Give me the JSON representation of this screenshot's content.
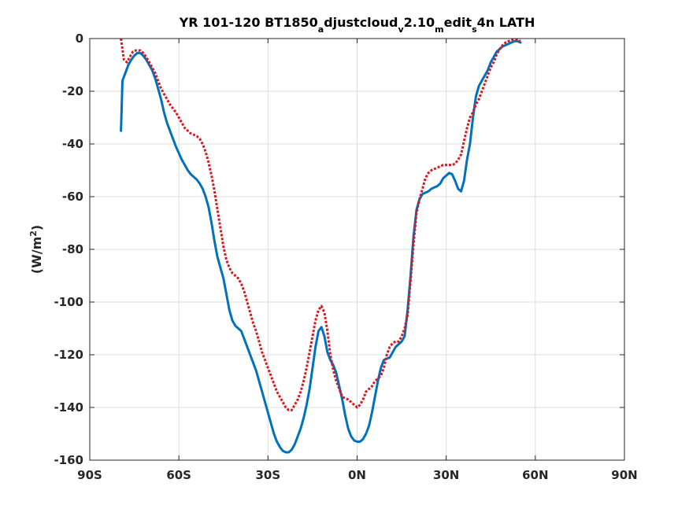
{
  "chart_data": {
    "type": "line",
    "title": {
      "parts": [
        {
          "text": "YR 101-120 BT1850",
          "shift": "none"
        },
        {
          "text": "a",
          "shift": "sub"
        },
        {
          "text": "djustcloud",
          "shift": "none"
        },
        {
          "text": "v",
          "shift": "sub"
        },
        {
          "text": "2.10",
          "shift": "none"
        },
        {
          "text": "m",
          "shift": "sub"
        },
        {
          "text": "edit",
          "shift": "none"
        },
        {
          "text": "s",
          "shift": "sub"
        },
        {
          "text": "4n LATH",
          "shift": "none"
        }
      ]
    },
    "ylabel": {
      "parts": [
        {
          "text": "(W/m",
          "shift": "none"
        },
        {
          "text": "2",
          "shift": "super"
        },
        {
          "text": ")",
          "shift": "none"
        }
      ]
    },
    "xlim": [
      -90,
      90
    ],
    "ylim": [
      -160,
      0
    ],
    "xticks": [
      -90,
      -60,
      -30,
      0,
      30,
      60,
      90
    ],
    "xtick_labels": [
      "90S",
      "60S",
      "30S",
      "0N",
      "30N",
      "60N",
      "90N"
    ],
    "yticks": [
      0,
      -20,
      -40,
      -60,
      -80,
      -100,
      -120,
      -140,
      -160
    ],
    "ytick_labels": [
      "0",
      "-20",
      "-40",
      "-60",
      "-80",
      "-100",
      "-120",
      "-140",
      "-160"
    ],
    "grid": true,
    "series": [
      {
        "color": "#0072BD",
        "style": "solid",
        "points": [
          [
            -79.5,
            -35
          ],
          [
            -79.3,
            -28
          ],
          [
            -79,
            -16
          ],
          [
            -78,
            -13
          ],
          [
            -77,
            -10
          ],
          [
            -76,
            -8
          ],
          [
            -75,
            -6.5
          ],
          [
            -74,
            -5.5
          ],
          [
            -73,
            -5.5
          ],
          [
            -72,
            -6.5
          ],
          [
            -71,
            -8
          ],
          [
            -70,
            -10
          ],
          [
            -69,
            -12
          ],
          [
            -68,
            -15
          ],
          [
            -67,
            -19
          ],
          [
            -66,
            -23
          ],
          [
            -65,
            -28
          ],
          [
            -64,
            -32
          ],
          [
            -63,
            -35
          ],
          [
            -62,
            -38
          ],
          [
            -61,
            -41
          ],
          [
            -60,
            -43.5
          ],
          [
            -59,
            -46
          ],
          [
            -58,
            -48
          ],
          [
            -57,
            -50
          ],
          [
            -56,
            -51.5
          ],
          [
            -55,
            -52.5
          ],
          [
            -54,
            -53.5
          ],
          [
            -53,
            -55
          ],
          [
            -52,
            -57
          ],
          [
            -51,
            -60
          ],
          [
            -50,
            -64
          ],
          [
            -49,
            -70
          ],
          [
            -48,
            -77
          ],
          [
            -47,
            -83
          ],
          [
            -46,
            -87
          ],
          [
            -45,
            -91
          ],
          [
            -44,
            -97
          ],
          [
            -43,
            -103
          ],
          [
            -42,
            -107
          ],
          [
            -41,
            -109
          ],
          [
            -40,
            -110
          ],
          [
            -39,
            -111
          ],
          [
            -38,
            -114
          ],
          [
            -37,
            -117
          ],
          [
            -36,
            -120
          ],
          [
            -35,
            -123
          ],
          [
            -34,
            -126
          ],
          [
            -33,
            -130
          ],
          [
            -32,
            -134
          ],
          [
            -31,
            -138
          ],
          [
            -30,
            -142
          ],
          [
            -29,
            -146
          ],
          [
            -28,
            -150
          ],
          [
            -27,
            -153
          ],
          [
            -26,
            -155
          ],
          [
            -25,
            -156.5
          ],
          [
            -24,
            -157
          ],
          [
            -23,
            -157
          ],
          [
            -22,
            -156
          ],
          [
            -21,
            -154
          ],
          [
            -20,
            -151
          ],
          [
            -19,
            -148
          ],
          [
            -18,
            -144
          ],
          [
            -17,
            -139
          ],
          [
            -16,
            -133
          ],
          [
            -15,
            -125
          ],
          [
            -14,
            -117
          ],
          [
            -13,
            -111
          ],
          [
            -12,
            -109.5
          ],
          [
            -11,
            -113
          ],
          [
            -10,
            -119
          ],
          [
            -9,
            -122
          ],
          [
            -8,
            -124
          ],
          [
            -7,
            -127
          ],
          [
            -6,
            -132
          ],
          [
            -5,
            -137
          ],
          [
            -4,
            -143
          ],
          [
            -3,
            -148
          ],
          [
            -2,
            -151
          ],
          [
            -1,
            -152.5
          ],
          [
            0,
            -153
          ],
          [
            1,
            -153
          ],
          [
            2,
            -152
          ],
          [
            3,
            -150
          ],
          [
            4,
            -147
          ],
          [
            5,
            -142
          ],
          [
            6,
            -136
          ],
          [
            7,
            -130
          ],
          [
            8,
            -125
          ],
          [
            9,
            -122
          ],
          [
            10,
            -121.5
          ],
          [
            11,
            -121
          ],
          [
            12,
            -119
          ],
          [
            13,
            -117
          ],
          [
            14,
            -116
          ],
          [
            15,
            -115
          ],
          [
            16,
            -113
          ],
          [
            17,
            -103
          ],
          [
            18,
            -90
          ],
          [
            19,
            -75
          ],
          [
            20,
            -65
          ],
          [
            21,
            -61
          ],
          [
            22,
            -59
          ],
          [
            23,
            -58.5
          ],
          [
            24,
            -58
          ],
          [
            25,
            -57
          ],
          [
            26,
            -56.5
          ],
          [
            27,
            -56
          ],
          [
            28,
            -55
          ],
          [
            29,
            -53
          ],
          [
            30,
            -52
          ],
          [
            31,
            -51
          ],
          [
            32,
            -51.5
          ],
          [
            33,
            -54
          ],
          [
            34,
            -57
          ],
          [
            35,
            -58
          ],
          [
            36,
            -54
          ],
          [
            37,
            -46
          ],
          [
            38,
            -40
          ],
          [
            39,
            -30
          ],
          [
            40,
            -22
          ],
          [
            41,
            -18
          ],
          [
            42,
            -16
          ],
          [
            43,
            -14
          ],
          [
            44,
            -12
          ],
          [
            45,
            -9
          ],
          [
            46,
            -7
          ],
          [
            47,
            -5
          ],
          [
            48,
            -4
          ],
          [
            49,
            -3
          ],
          [
            50,
            -2.5
          ],
          [
            51,
            -2
          ],
          [
            52,
            -1.5
          ],
          [
            53,
            -1
          ],
          [
            54,
            -1
          ],
          [
            55,
            -1.5
          ]
        ]
      },
      {
        "color": "#D71920",
        "style": "dashed",
        "points": [
          [
            -79.5,
            0
          ],
          [
            -79,
            -4
          ],
          [
            -78.5,
            -8
          ],
          [
            -77.5,
            -9
          ],
          [
            -76.5,
            -7
          ],
          [
            -75.5,
            -5
          ],
          [
            -74.5,
            -4.5
          ],
          [
            -73,
            -4.5
          ],
          [
            -72,
            -5.5
          ],
          [
            -71,
            -7
          ],
          [
            -70,
            -9
          ],
          [
            -69,
            -11
          ],
          [
            -68,
            -13
          ],
          [
            -67,
            -16
          ],
          [
            -66,
            -19
          ],
          [
            -65,
            -21
          ],
          [
            -64,
            -23
          ],
          [
            -63,
            -25
          ],
          [
            -62,
            -26.5
          ],
          [
            -61,
            -28
          ],
          [
            -60,
            -30
          ],
          [
            -59,
            -32
          ],
          [
            -58,
            -34
          ],
          [
            -57,
            -35
          ],
          [
            -56,
            -36
          ],
          [
            -55,
            -36.5
          ],
          [
            -54,
            -37
          ],
          [
            -53,
            -38
          ],
          [
            -52,
            -40
          ],
          [
            -51,
            -43
          ],
          [
            -50,
            -47
          ],
          [
            -49,
            -52
          ],
          [
            -48,
            -58
          ],
          [
            -47,
            -65
          ],
          [
            -46,
            -72
          ],
          [
            -45,
            -79
          ],
          [
            -44,
            -84
          ],
          [
            -43,
            -87
          ],
          [
            -42,
            -89
          ],
          [
            -41,
            -90
          ],
          [
            -40,
            -91
          ],
          [
            -39,
            -93
          ],
          [
            -38,
            -96
          ],
          [
            -37,
            -100
          ],
          [
            -36,
            -104
          ],
          [
            -35,
            -108
          ],
          [
            -34,
            -111
          ],
          [
            -33,
            -115
          ],
          [
            -32,
            -119
          ],
          [
            -31,
            -122
          ],
          [
            -30,
            -125
          ],
          [
            -29,
            -128
          ],
          [
            -28,
            -131
          ],
          [
            -27,
            -134
          ],
          [
            -26,
            -136
          ],
          [
            -25,
            -138
          ],
          [
            -24,
            -140
          ],
          [
            -23,
            -141
          ],
          [
            -22,
            -141
          ],
          [
            -21,
            -139
          ],
          [
            -20,
            -137
          ],
          [
            -19,
            -134
          ],
          [
            -18,
            -130
          ],
          [
            -17,
            -125
          ],
          [
            -16,
            -119
          ],
          [
            -15,
            -113
          ],
          [
            -14,
            -107
          ],
          [
            -13,
            -103
          ],
          [
            -12,
            -101.5
          ],
          [
            -11,
            -104
          ],
          [
            -10,
            -111
          ],
          [
            -9,
            -120
          ],
          [
            -8,
            -126
          ],
          [
            -7,
            -130
          ],
          [
            -6,
            -133
          ],
          [
            -5,
            -136
          ],
          [
            -4,
            -136.5
          ],
          [
            -3,
            -137
          ],
          [
            -2,
            -138
          ],
          [
            -1,
            -139
          ],
          [
            0,
            -140
          ],
          [
            1,
            -139
          ],
          [
            2,
            -137
          ],
          [
            3,
            -134
          ],
          [
            4,
            -133
          ],
          [
            5,
            -132
          ],
          [
            6,
            -130
          ],
          [
            7,
            -129
          ],
          [
            8,
            -128
          ],
          [
            9,
            -125
          ],
          [
            10,
            -120
          ],
          [
            11,
            -117
          ],
          [
            12,
            -115.5
          ],
          [
            13,
            -115
          ],
          [
            14,
            -115
          ],
          [
            15,
            -113
          ],
          [
            16,
            -110
          ],
          [
            17,
            -105
          ],
          [
            18,
            -92
          ],
          [
            19,
            -78
          ],
          [
            20,
            -66
          ],
          [
            21,
            -61
          ],
          [
            22,
            -57
          ],
          [
            23,
            -53
          ],
          [
            24,
            -51
          ],
          [
            25,
            -50
          ],
          [
            26,
            -49.5
          ],
          [
            27,
            -49
          ],
          [
            28,
            -48.5
          ],
          [
            29,
            -48
          ],
          [
            30,
            -48
          ],
          [
            31,
            -48
          ],
          [
            32,
            -48
          ],
          [
            33,
            -47.5
          ],
          [
            34,
            -46
          ],
          [
            35,
            -44
          ],
          [
            36,
            -39
          ],
          [
            37,
            -34
          ],
          [
            38,
            -30
          ],
          [
            39,
            -28
          ],
          [
            40,
            -25
          ],
          [
            41,
            -23
          ],
          [
            42,
            -20
          ],
          [
            43,
            -17
          ],
          [
            44,
            -14
          ],
          [
            45,
            -11
          ],
          [
            46,
            -9
          ],
          [
            47,
            -6
          ],
          [
            48,
            -4
          ],
          [
            49,
            -2.5
          ],
          [
            50,
            -1.5
          ],
          [
            51,
            -1
          ],
          [
            52,
            -0.5
          ],
          [
            53,
            -0.5
          ],
          [
            54,
            -0.5
          ],
          [
            55,
            -1
          ]
        ]
      }
    ]
  }
}
